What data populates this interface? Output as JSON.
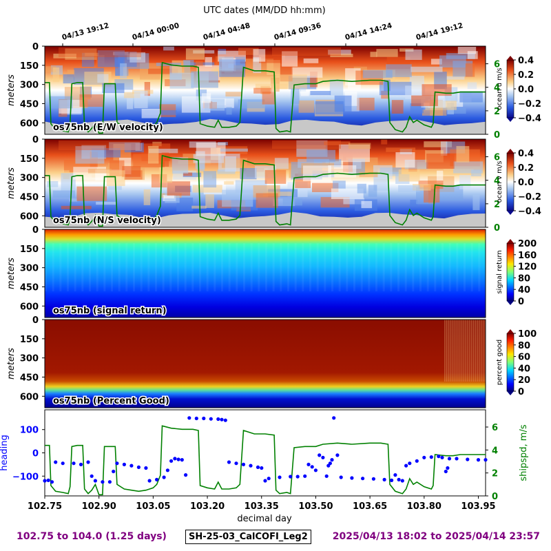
{
  "figure": {
    "top_axis_label": "UTC dates (MM/DD hh:mm)",
    "bottom_axis_label": "decimal day",
    "footer_left": "102.75 to 104.0 (1.25 days)",
    "footer_center": "SH-25-03_CalCOFI_Leg2",
    "footer_right": "2025/04/13 18:02 to 2025/04/14 23:57",
    "colors": {
      "ship_speed": "#008000",
      "heading": "#0000ff",
      "footer": "#800080",
      "bottom_mask": "#c8c8c8"
    }
  },
  "chart_data": [
    {
      "type": "heatmap",
      "title": "os75nb (E/W velocity)",
      "ylabel": "meters",
      "y_ticks": [
        "0",
        "150",
        "300",
        "450",
        "600"
      ],
      "ylim": [
        690,
        0
      ],
      "colorbar_label": "ocean u m/s",
      "colorbar_ticks": [
        "0.4",
        "0.2",
        "0.0",
        "−0.2",
        "−0.4"
      ],
      "clim": [
        -0.4,
        0.4
      ],
      "colormap": "blue-white-red",
      "right_axis_ticks": [
        "6",
        "4",
        "2",
        "0"
      ],
      "overlay": "ship speed"
    },
    {
      "type": "heatmap",
      "title": "os75nb (N/S velocity)",
      "ylabel": "meters",
      "y_ticks": [
        "0",
        "150",
        "300",
        "450",
        "600"
      ],
      "ylim": [
        690,
        0
      ],
      "colorbar_label": "ocean v m/s",
      "colorbar_ticks": [
        "0.4",
        "0.2",
        "0.0",
        "−0.2",
        "−0.4"
      ],
      "clim": [
        -0.4,
        0.4
      ],
      "colormap": "blue-white-red",
      "right_axis_ticks": [
        "6",
        "4",
        "2",
        "0"
      ],
      "overlay": "ship speed"
    },
    {
      "type": "heatmap",
      "title": "os75nb (signal return)",
      "ylabel": "meters",
      "y_ticks": [
        "0",
        "150",
        "300",
        "450",
        "600"
      ],
      "ylim": [
        690,
        0
      ],
      "colorbar_label": "signal return",
      "colorbar_ticks": [
        "200",
        "160",
        "120",
        "80",
        "40",
        "0"
      ],
      "clim": [
        0,
        200
      ],
      "colormap": "jet"
    },
    {
      "type": "heatmap",
      "title": "os75nb (Percent Good)",
      "ylabel": "meters",
      "y_ticks": [
        "0",
        "150",
        "300",
        "450",
        "600"
      ],
      "ylim": [
        690,
        0
      ],
      "colorbar_label": "percent good",
      "colorbar_ticks": [
        "100",
        "80",
        "60",
        "40",
        "20",
        "0"
      ],
      "clim": [
        0,
        100
      ],
      "colormap": "jet"
    },
    {
      "type": "scatter",
      "ylabel": "heading",
      "y2label": "shipspd, m/s",
      "x_ticks": [
        "102.75",
        "102.90",
        "103.05",
        "103.20",
        "103.35",
        "103.50",
        "103.65",
        "103.80",
        "103.95"
      ],
      "xlim": [
        102.75,
        103.97
      ],
      "y_ticks": [
        "100",
        "0",
        "−100"
      ],
      "ylim": [
        -185,
        185
      ],
      "y2_ticks": [
        "6",
        "4",
        "2",
        "0"
      ],
      "y2lim": [
        0,
        7.5
      ],
      "top_date_ticks": [
        "04/13 19:12",
        "04/14 00:00",
        "04/14 04:48",
        "04/14 09:36",
        "04/14 14:24",
        "04/14 19:12"
      ],
      "series": [
        {
          "name": "heading",
          "color": "#0000ff",
          "points": [
            [
              102.75,
              -120
            ],
            [
              102.76,
              -118
            ],
            [
              102.77,
              -125
            ],
            [
              102.78,
              -40
            ],
            [
              102.8,
              -45
            ],
            [
              102.83,
              -45
            ],
            [
              102.85,
              -50
            ],
            [
              102.87,
              -40
            ],
            [
              102.88,
              -100
            ],
            [
              102.89,
              -120
            ],
            [
              102.91,
              -125
            ],
            [
              102.93,
              -125
            ],
            [
              102.94,
              -80
            ],
            [
              102.95,
              -45
            ],
            [
              102.97,
              -50
            ],
            [
              102.99,
              -55
            ],
            [
              103.01,
              -62
            ],
            [
              103.03,
              -65
            ],
            [
              103.04,
              -120
            ],
            [
              103.06,
              -115
            ],
            [
              103.08,
              -105
            ],
            [
              103.09,
              -75
            ],
            [
              103.1,
              -35
            ],
            [
              103.11,
              -25
            ],
            [
              103.12,
              -28
            ],
            [
              103.13,
              -30
            ],
            [
              103.14,
              -95
            ],
            [
              103.15,
              150
            ],
            [
              103.17,
              148
            ],
            [
              103.19,
              148
            ],
            [
              103.21,
              146
            ],
            [
              103.23,
              145
            ],
            [
              103.24,
              143
            ],
            [
              103.25,
              140
            ],
            [
              103.26,
              -40
            ],
            [
              103.28,
              -45
            ],
            [
              103.3,
              -50
            ],
            [
              103.32,
              -55
            ],
            [
              103.34,
              -62
            ],
            [
              103.35,
              -65
            ],
            [
              103.36,
              -120
            ],
            [
              103.37,
              -110
            ],
            [
              103.4,
              -105
            ],
            [
              103.43,
              -102
            ],
            [
              103.45,
              -102
            ],
            [
              103.47,
              -100
            ],
            [
              103.48,
              -50
            ],
            [
              103.49,
              -60
            ],
            [
              103.5,
              -75
            ],
            [
              103.51,
              -10
            ],
            [
              103.52,
              -20
            ],
            [
              103.53,
              -100
            ],
            [
              103.535,
              -55
            ],
            [
              103.54,
              -45
            ],
            [
              103.545,
              -30
            ],
            [
              103.55,
              150
            ],
            [
              103.56,
              -10
            ],
            [
              103.57,
              -105
            ],
            [
              103.6,
              -108
            ],
            [
              103.63,
              -110
            ],
            [
              103.66,
              -112
            ],
            [
              103.69,
              -115
            ],
            [
              103.71,
              -118
            ],
            [
              103.72,
              -95
            ],
            [
              103.73,
              -115
            ],
            [
              103.74,
              -120
            ],
            [
              103.75,
              -55
            ],
            [
              103.76,
              -45
            ],
            [
              103.78,
              -35
            ],
            [
              103.8,
              -20
            ],
            [
              103.82,
              -18
            ],
            [
              103.84,
              -15
            ],
            [
              103.85,
              -20
            ],
            [
              103.86,
              -80
            ],
            [
              103.865,
              -65
            ],
            [
              103.87,
              -25
            ],
            [
              103.89,
              -25
            ],
            [
              103.92,
              -28
            ],
            [
              103.95,
              -30
            ],
            [
              103.97,
              -30
            ]
          ]
        },
        {
          "name": "ship speed",
          "axis": "right",
          "color": "#008000",
          "points": [
            [
              102.75,
              4.4
            ],
            [
              102.763,
              4.4
            ],
            [
              102.767,
              0.9
            ],
            [
              102.78,
              0.4
            ],
            [
              102.8,
              0.3
            ],
            [
              102.815,
              0.2
            ],
            [
              102.82,
              0.8
            ],
            [
              102.825,
              4.3
            ],
            [
              102.84,
              4.4
            ],
            [
              102.855,
              4.4
            ],
            [
              102.86,
              0.6
            ],
            [
              102.87,
              0.2
            ],
            [
              102.88,
              0.5
            ],
            [
              102.89,
              1.0
            ],
            [
              102.9,
              0.1
            ],
            [
              102.91,
              0.1
            ],
            [
              102.915,
              4.3
            ],
            [
              102.93,
              4.3
            ],
            [
              102.945,
              4.3
            ],
            [
              102.95,
              1.0
            ],
            [
              102.97,
              0.6
            ],
            [
              102.99,
              0.5
            ],
            [
              103.01,
              0.4
            ],
            [
              103.03,
              0.5
            ],
            [
              103.05,
              0.7
            ],
            [
              103.06,
              1.0
            ],
            [
              103.07,
              1.8
            ],
            [
              103.075,
              6.1
            ],
            [
              103.1,
              5.9
            ],
            [
              103.13,
              5.8
            ],
            [
              103.16,
              5.8
            ],
            [
              103.175,
              5.7
            ],
            [
              103.18,
              0.9
            ],
            [
              103.2,
              0.7
            ],
            [
              103.22,
              0.6
            ],
            [
              103.23,
              1.2
            ],
            [
              103.24,
              0.6
            ],
            [
              103.26,
              0.6
            ],
            [
              103.28,
              0.7
            ],
            [
              103.29,
              1.0
            ],
            [
              103.3,
              5.7
            ],
            [
              103.33,
              5.4
            ],
            [
              103.36,
              5.4
            ],
            [
              103.385,
              5.3
            ],
            [
              103.39,
              0.5
            ],
            [
              103.4,
              0.2
            ],
            [
              103.42,
              0.3
            ],
            [
              103.43,
              0.2
            ],
            [
              103.44,
              4.2
            ],
            [
              103.47,
              4.3
            ],
            [
              103.5,
              4.3
            ],
            [
              103.52,
              4.5
            ],
            [
              103.56,
              4.6
            ],
            [
              103.6,
              4.5
            ],
            [
              103.65,
              4.6
            ],
            [
              103.68,
              4.6
            ],
            [
              103.7,
              4.5
            ],
            [
              103.705,
              1.0
            ],
            [
              103.72,
              0.4
            ],
            [
              103.74,
              0.2
            ],
            [
              103.75,
              0.6
            ],
            [
              103.76,
              1.5
            ],
            [
              103.77,
              1.0
            ],
            [
              103.78,
              1.2
            ],
            [
              103.8,
              0.8
            ],
            [
              103.82,
              0.6
            ],
            [
              103.825,
              0.9
            ],
            [
              103.83,
              3.6
            ],
            [
              103.86,
              3.5
            ],
            [
              103.88,
              3.5
            ],
            [
              103.9,
              3.6
            ],
            [
              103.94,
              3.6
            ],
            [
              103.97,
              3.6
            ]
          ]
        }
      ]
    }
  ]
}
